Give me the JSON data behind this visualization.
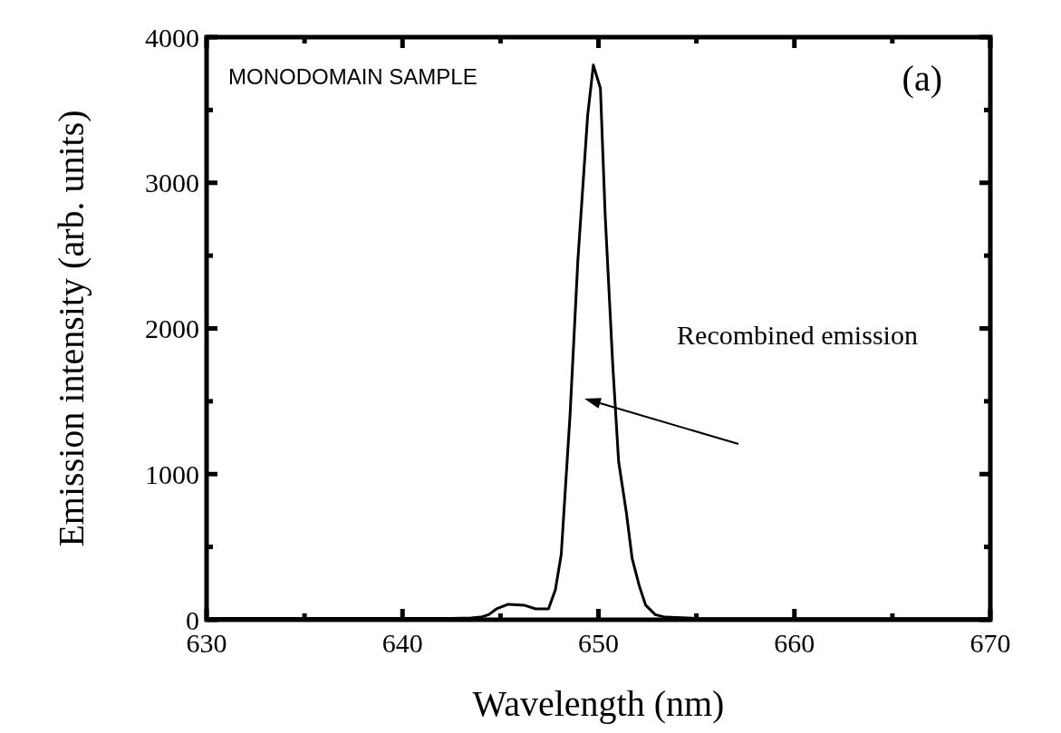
{
  "chart_data": {
    "type": "line",
    "xlabel": "Wavelength (nm)",
    "ylabel": "Emission intensity (arb. units)",
    "xlim": [
      630,
      670
    ],
    "xticks": [
      630,
      {
        "value": 635,
        "label": null
      },
      640,
      {
        "value": 645,
        "label": null
      },
      650,
      {
        "value": 655,
        "label": null
      },
      660,
      {
        "value": 665,
        "label": null
      },
      670
    ],
    "ylim": [
      0,
      4000
    ],
    "yticks": [
      0,
      {
        "value": 500,
        "label": null
      },
      1000,
      {
        "value": 1500,
        "label": null
      },
      2000,
      {
        "value": 2500,
        "label": null
      },
      3000,
      {
        "value": 3500,
        "label": null
      },
      4000
    ],
    "grid": false,
    "marker": "none",
    "line_style": "solid",
    "series": [
      {
        "color": "#000000",
        "x": [
          630,
          633,
          636,
          639,
          641,
          642.5,
          643.5,
          644.0,
          644.4,
          644.8,
          645.4,
          646.2,
          646.8,
          647.45,
          647.8,
          648.1,
          648.55,
          648.95,
          649.45,
          649.74,
          650.1,
          650.34,
          650.73,
          651.03,
          651.42,
          651.72,
          652.08,
          652.41,
          652.9,
          653.4,
          655,
          658,
          661,
          664,
          667,
          670
        ],
        "values": [
          10,
          10,
          10,
          10,
          10,
          10,
          12,
          18,
          35,
          75,
          106,
          100,
          75,
          75,
          205,
          448,
          1405,
          2469,
          3464,
          3808,
          3649,
          2786,
          1749,
          1085,
          740,
          420,
          234,
          100,
          35,
          18,
          10,
          8,
          8,
          8,
          8,
          8
        ]
      }
    ],
    "annotations": [
      "MONODOMAIN SAMPLE",
      "(a)",
      "Recombined emission"
    ]
  }
}
